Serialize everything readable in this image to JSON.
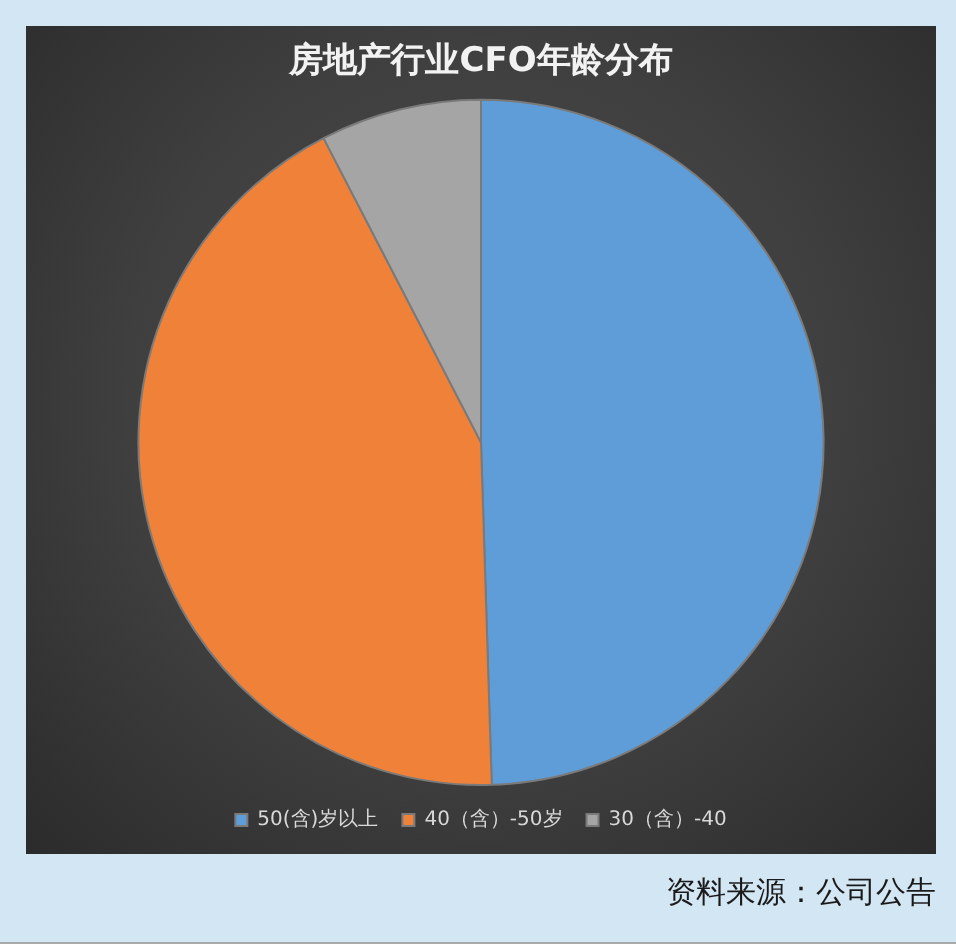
{
  "chart_data": {
    "type": "pie",
    "title": "房地产行业CFO年龄分布",
    "categories": [
      "50(含)岁以上",
      "40（含）-50岁",
      "30（含）-40"
    ],
    "values": [
      49.5,
      42.9,
      7.6
    ],
    "colors": [
      "#5f9dd9",
      "#ef8139",
      "#a5a5a5"
    ],
    "legend": "bottom",
    "annotations": [
      "资料来源：公司公告"
    ]
  }
}
